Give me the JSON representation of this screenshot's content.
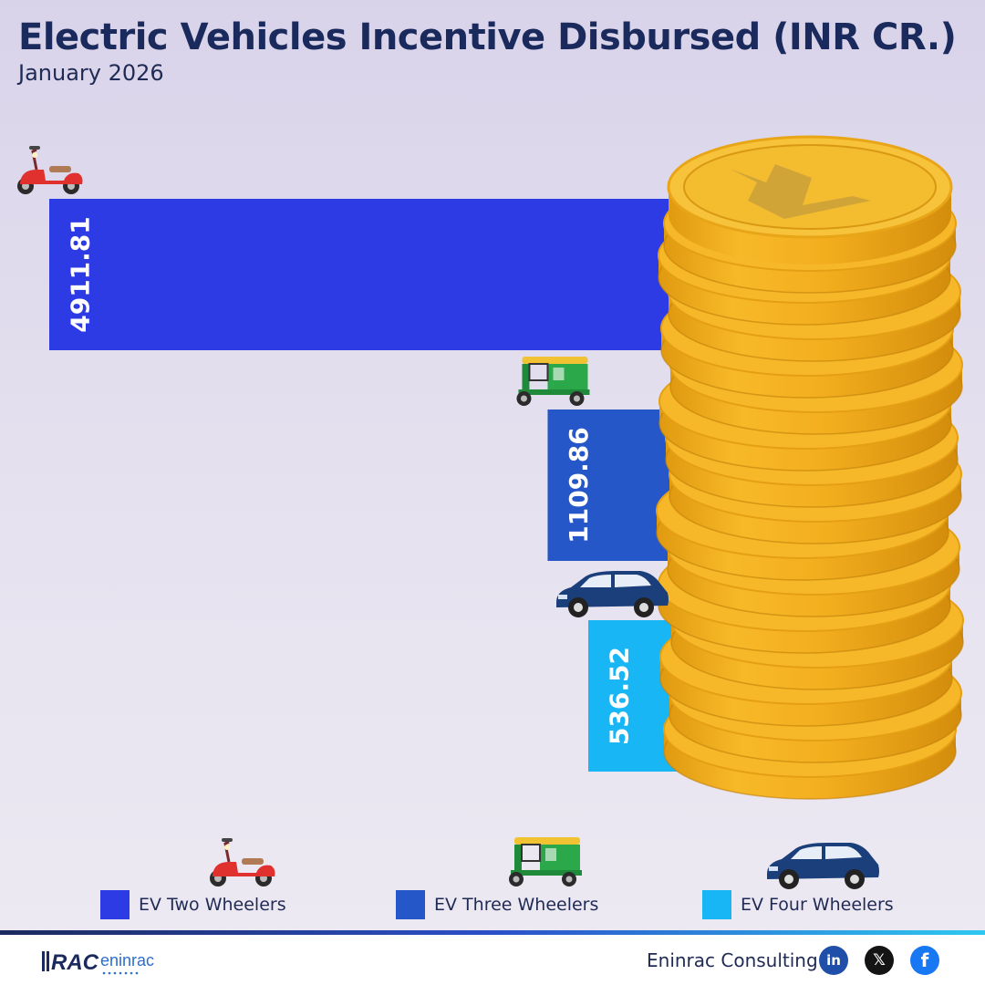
{
  "header": {
    "title": "Electric Vehicles Incentive Disbursed (INR CR.)",
    "subtitle": "January 2026"
  },
  "chart_data": {
    "type": "bar",
    "orientation": "horizontal",
    "title": "Electric Vehicles Incentive Disbursed (INR CR.)",
    "subtitle": "January 2026",
    "categories": [
      "EV Two Wheelers",
      "EV Three Wheelers",
      "EV Four Wheelers"
    ],
    "values": [
      4911.81,
      1109.86,
      536.52
    ],
    "value_labels": [
      "4911.81",
      "1109.86",
      "536.52"
    ],
    "colors": [
      "#2c3be3",
      "#2557c9",
      "#19b6f5"
    ],
    "icons": [
      "scooter-icon",
      "auto-rickshaw-icon",
      "car-icon"
    ],
    "legend_position": "bottom",
    "grid": false
  },
  "legend": {
    "items": [
      {
        "label": "EV Two Wheelers",
        "color": "#2c3be3",
        "icon": "scooter-icon"
      },
      {
        "label": "EV Three Wheelers",
        "color": "#2557c9",
        "icon": "auto-rickshaw-icon"
      },
      {
        "label": "EV Four Wheelers",
        "color": "#19b6f5",
        "icon": "car-icon"
      }
    ]
  },
  "footer": {
    "logo_text": "RAC",
    "logo_sub": "eninrac",
    "company": "Eninrac Consulting",
    "social": [
      {
        "icon": "linkedin-icon",
        "glyph": "in"
      },
      {
        "icon": "x-icon",
        "glyph": "𝕏"
      },
      {
        "icon": "facebook-icon",
        "glyph": "f"
      }
    ]
  }
}
